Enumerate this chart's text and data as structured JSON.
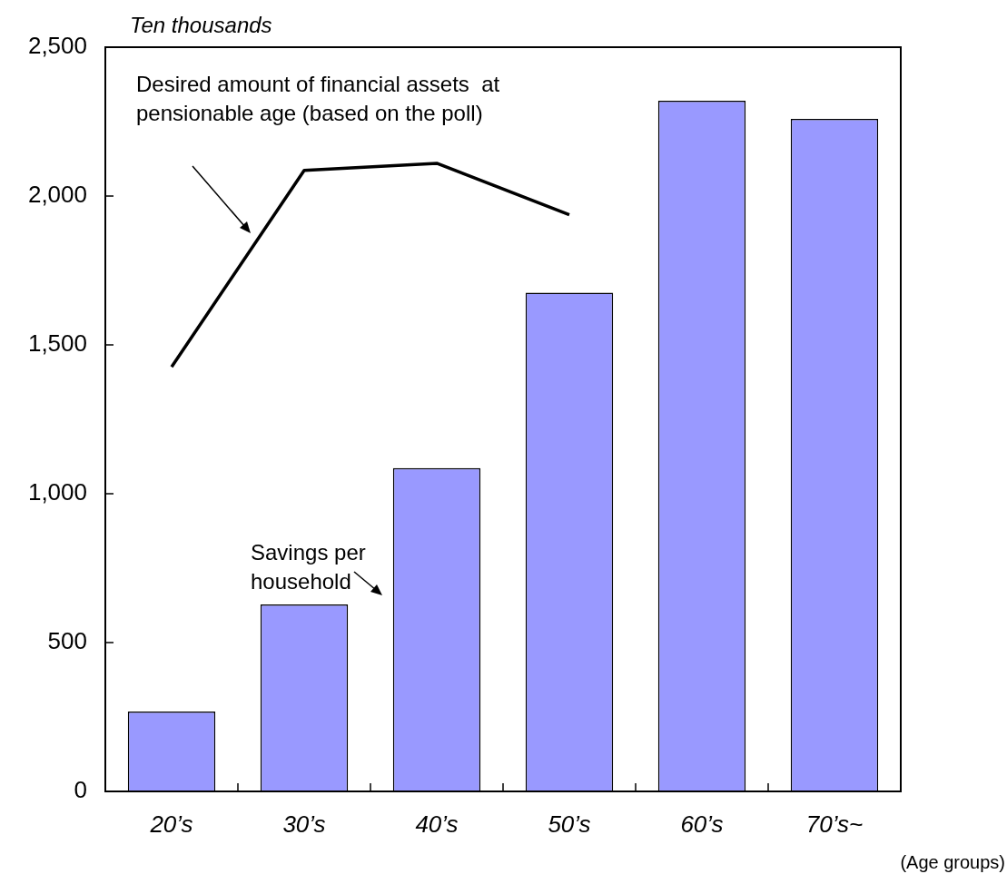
{
  "chart_data": {
    "type": "bar",
    "categories": [
      "20’s",
      "30’s",
      "40’s",
      "50’s",
      "60’s",
      "70’s~"
    ],
    "series": [
      {
        "name": "Savings per household",
        "color": "#9999ff",
        "values": [
          268,
          628,
          1086,
          1675,
          2320,
          2259
        ]
      },
      {
        "name": "Desired amount of financial assets  at pensionable age (based on the poll)",
        "type": "line",
        "color": "#000000",
        "values": [
          1426,
          2086,
          2110,
          1937,
          null,
          null
        ]
      }
    ],
    "ylim": [
      0,
      2500
    ],
    "yticks": [
      0,
      500,
      {
        "value": 1000,
        "label": "1,000"
      },
      {
        "value": 1500,
        "label": "1,500"
      },
      {
        "value": 2000,
        "label": "2,000"
      },
      {
        "value": 2500,
        "label": "2,500"
      }
    ],
    "ylabel": "Ten thousands",
    "xlabel": "(Age groups)",
    "marker": "none",
    "legend": false
  }
}
